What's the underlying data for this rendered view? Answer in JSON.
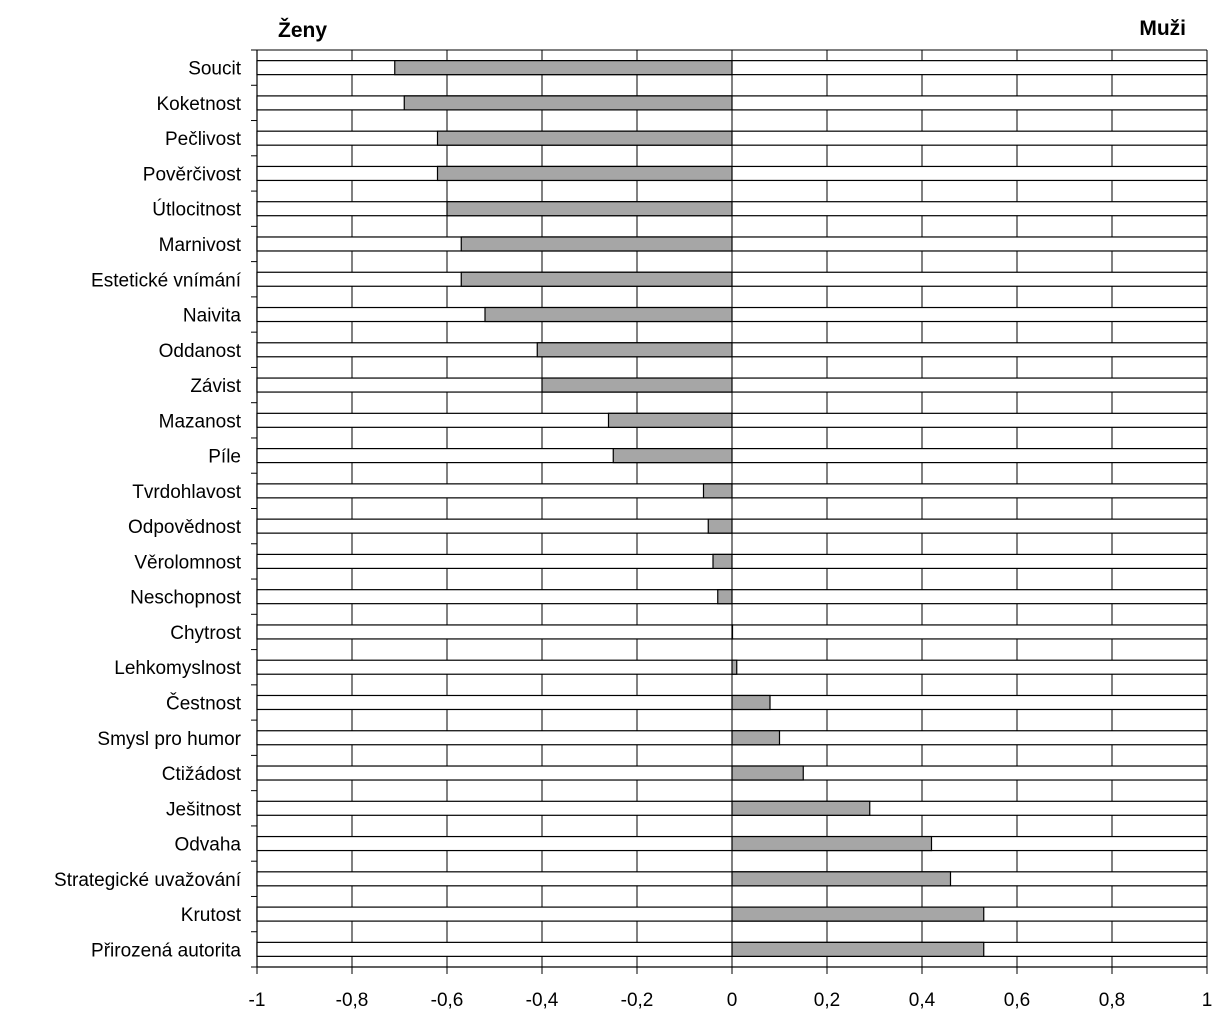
{
  "chart_data": {
    "type": "bar",
    "orientation": "horizontal",
    "left_label": "Ženy",
    "right_label": "Muži",
    "xlim": [
      -1,
      1
    ],
    "x_ticks": [
      "-1",
      "-0,8",
      "-0,6",
      "-0,4",
      "-0,2",
      "0",
      "0,2",
      "0,4",
      "0,6",
      "0,8",
      "1"
    ],
    "grid": true,
    "categories": [
      "Soucit",
      "Koketnost",
      "Pečlivost",
      "Pověrčivost",
      "Útlocitnost",
      "Marnivost",
      "Estetické vnímání",
      "Naivita",
      "Oddanost",
      "Závist",
      "Mazanost",
      "Píle",
      "Tvrdohlavost",
      "Odpovědnost",
      "Věrolomnost",
      "Neschopnost",
      "Chytrost",
      "Lehkomyslnost",
      "Čestnost",
      "Smysl pro humor",
      "Ctižádost",
      "Ješitnost",
      "Odvaha",
      "Strategické uvažování",
      "Krutost",
      "Přirozená autorita"
    ],
    "values": [
      -0.71,
      -0.69,
      -0.62,
      -0.62,
      -0.6,
      -0.57,
      -0.57,
      -0.52,
      -0.41,
      -0.4,
      -0.26,
      -0.25,
      -0.06,
      -0.05,
      -0.04,
      -0.03,
      0,
      0.01,
      0.08,
      0.1,
      0.15,
      0.29,
      0.42,
      0.46,
      0.53,
      0.53
    ],
    "colors": {
      "bar": "#a6a6a6",
      "background_bar": "#ffffff",
      "stroke": "#000000",
      "grid": "#000000"
    }
  }
}
